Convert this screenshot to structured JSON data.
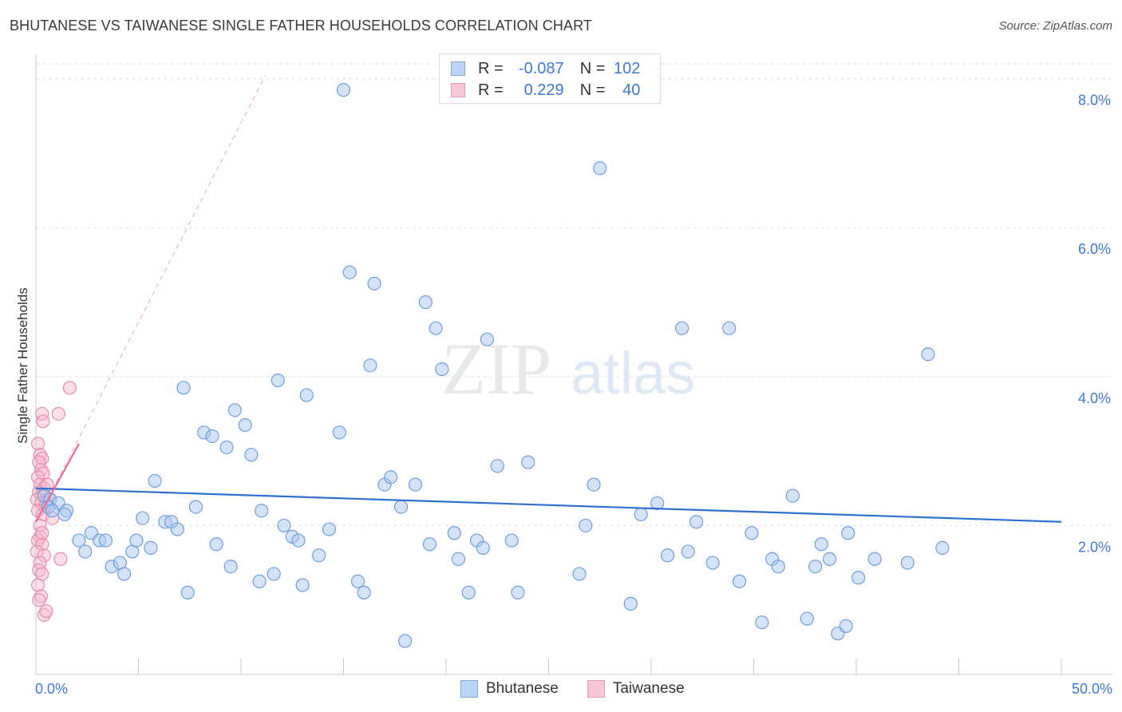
{
  "title": "BHUTANESE VS TAIWANESE SINGLE FATHER HOUSEHOLDS CORRELATION CHART",
  "source": "Source: ZipAtlas.com",
  "watermark": {
    "zip": "ZIP",
    "atlas": "atlas"
  },
  "legend": {
    "rows": [
      {
        "r_label": "R =",
        "r_value": "-0.087",
        "n_label": "N =",
        "n_value": "102"
      },
      {
        "r_label": "R =",
        "r_value": "0.229",
        "n_label": "N =",
        "n_value": "40"
      }
    ],
    "items": [
      {
        "label": "Bhutanese",
        "color": "#bcd4f6"
      },
      {
        "label": "Taiwanese",
        "color": "#f8c7d5"
      }
    ]
  },
  "colors": {
    "blue_fill": "#a9c7ef",
    "blue_stroke": "#6d9ee0",
    "blue_line": "#2f6fd0",
    "pink_fill": "#f7b9cc",
    "pink_stroke": "#e88aa8",
    "pink_line": "#e56b95",
    "grid": "#dddddd",
    "tick_label": "#3b78d8"
  },
  "chart_data": {
    "type": "scatter",
    "xlabel": "",
    "ylabel": "Single Father Households",
    "xlim": [
      0,
      50
    ],
    "ylim": [
      0,
      8.2
    ],
    "x_tick_labels": [
      "0.0%",
      "50.0%"
    ],
    "y_ticks": [
      2,
      4,
      6,
      8
    ],
    "y_tick_labels": [
      "2.0%",
      "4.0%",
      "6.0%",
      "8.0%"
    ],
    "series": [
      {
        "name": "Bhutanese",
        "r": -0.087,
        "n": 102,
        "trend": {
          "x": [
            0,
            50
          ],
          "y": [
            2.5,
            2.05
          ]
        },
        "points": [
          [
            0.4,
            2.4
          ],
          [
            0.7,
            2.35
          ],
          [
            1.1,
            2.3
          ],
          [
            0.6,
            2.25
          ],
          [
            0.8,
            2.2
          ],
          [
            1.5,
            2.2
          ],
          [
            1.4,
            2.15
          ],
          [
            2.1,
            1.8
          ],
          [
            2.7,
            1.9
          ],
          [
            3.1,
            1.8
          ],
          [
            3.4,
            1.8
          ],
          [
            2.4,
            1.65
          ],
          [
            3.7,
            1.45
          ],
          [
            4.1,
            1.5
          ],
          [
            4.3,
            1.35
          ],
          [
            4.7,
            1.65
          ],
          [
            4.9,
            1.8
          ],
          [
            5.2,
            2.1
          ],
          [
            5.6,
            1.7
          ],
          [
            5.8,
            2.6
          ],
          [
            6.3,
            2.05
          ],
          [
            6.6,
            2.05
          ],
          [
            6.9,
            1.95
          ],
          [
            7.2,
            3.85
          ],
          [
            7.4,
            1.1
          ],
          [
            7.8,
            2.25
          ],
          [
            8.2,
            3.25
          ],
          [
            8.6,
            3.2
          ],
          [
            8.8,
            1.75
          ],
          [
            9.3,
            3.05
          ],
          [
            9.5,
            1.45
          ],
          [
            9.7,
            3.55
          ],
          [
            10.2,
            3.35
          ],
          [
            10.5,
            2.95
          ],
          [
            10.9,
            1.25
          ],
          [
            11.0,
            2.2
          ],
          [
            11.6,
            1.35
          ],
          [
            11.8,
            3.95
          ],
          [
            12.1,
            2.0
          ],
          [
            12.5,
            1.85
          ],
          [
            12.8,
            1.8
          ],
          [
            13.0,
            1.2
          ],
          [
            13.2,
            3.75
          ],
          [
            13.8,
            1.6
          ],
          [
            14.3,
            1.95
          ],
          [
            14.8,
            3.25
          ],
          [
            15.3,
            5.4
          ],
          [
            15.7,
            1.25
          ],
          [
            16.0,
            1.1
          ],
          [
            16.3,
            4.15
          ],
          [
            16.5,
            5.25
          ],
          [
            17.0,
            2.55
          ],
          [
            17.3,
            2.65
          ],
          [
            17.8,
            2.25
          ],
          [
            18.0,
            0.45
          ],
          [
            18.5,
            2.55
          ],
          [
            15.0,
            7.85
          ],
          [
            19.0,
            5.0
          ],
          [
            19.2,
            1.75
          ],
          [
            19.5,
            4.65
          ],
          [
            19.8,
            4.1
          ],
          [
            20.4,
            1.9
          ],
          [
            20.6,
            1.55
          ],
          [
            21.5,
            1.8
          ],
          [
            21.8,
            1.7
          ],
          [
            21.1,
            1.1
          ],
          [
            22.0,
            4.5
          ],
          [
            22.5,
            2.8
          ],
          [
            23.2,
            1.8
          ],
          [
            23.5,
            1.1
          ],
          [
            24.0,
            2.85
          ],
          [
            26.5,
            1.35
          ],
          [
            26.8,
            2.0
          ],
          [
            27.2,
            2.55
          ],
          [
            27.5,
            6.8
          ],
          [
            29.0,
            0.95
          ],
          [
            29.5,
            2.15
          ],
          [
            30.3,
            2.3
          ],
          [
            30.8,
            1.6
          ],
          [
            31.5,
            4.65
          ],
          [
            31.8,
            1.65
          ],
          [
            32.2,
            2.05
          ],
          [
            33.0,
            1.5
          ],
          [
            33.8,
            4.65
          ],
          [
            34.3,
            1.25
          ],
          [
            34.9,
            1.9
          ],
          [
            35.4,
            0.7
          ],
          [
            35.9,
            1.55
          ],
          [
            36.2,
            1.45
          ],
          [
            36.9,
            2.4
          ],
          [
            37.6,
            0.75
          ],
          [
            38.0,
            1.45
          ],
          [
            38.3,
            1.75
          ],
          [
            38.7,
            1.55
          ],
          [
            39.1,
            0.55
          ],
          [
            39.5,
            0.65
          ],
          [
            40.1,
            1.3
          ],
          [
            39.6,
            1.9
          ],
          [
            40.9,
            1.55
          ],
          [
            42.5,
            1.5
          ],
          [
            43.5,
            4.3
          ],
          [
            44.2,
            1.7
          ]
        ]
      },
      {
        "name": "Taiwanese",
        "r": 0.229,
        "n": 40,
        "trend": {
          "x": [
            0,
            2.1
          ],
          "y": [
            2.05,
            3.1
          ]
        },
        "trend_extended": {
          "x": [
            0,
            11.2
          ],
          "y": [
            2.05,
            8.05
          ]
        },
        "points": [
          [
            0.1,
            3.1
          ],
          [
            0.2,
            2.95
          ],
          [
            0.3,
            2.9
          ],
          [
            0.15,
            2.85
          ],
          [
            0.25,
            2.75
          ],
          [
            0.35,
            2.7
          ],
          [
            0.1,
            2.65
          ],
          [
            0.2,
            2.55
          ],
          [
            0.4,
            2.5
          ],
          [
            0.15,
            2.45
          ],
          [
            0.3,
            2.4
          ],
          [
            0.05,
            2.35
          ],
          [
            0.25,
            2.3
          ],
          [
            0.45,
            2.25
          ],
          [
            0.1,
            2.2
          ],
          [
            0.35,
            2.15
          ],
          [
            0.2,
            1.85
          ],
          [
            0.1,
            1.8
          ],
          [
            0.3,
            1.75
          ],
          [
            0.05,
            1.65
          ],
          [
            0.4,
            1.6
          ],
          [
            0.2,
            1.5
          ],
          [
            0.15,
            1.4
          ],
          [
            0.3,
            1.35
          ],
          [
            0.1,
            1.2
          ],
          [
            0.25,
            1.05
          ],
          [
            0.15,
            1.0
          ],
          [
            0.4,
            0.8
          ],
          [
            0.5,
            0.85
          ],
          [
            1.2,
            1.55
          ],
          [
            0.3,
            3.5
          ],
          [
            0.35,
            3.4
          ],
          [
            1.1,
            3.5
          ],
          [
            1.65,
            3.85
          ],
          [
            0.8,
            2.1
          ],
          [
            0.55,
            2.55
          ],
          [
            0.6,
            2.35
          ],
          [
            0.5,
            2.3
          ],
          [
            0.2,
            2.0
          ],
          [
            0.3,
            1.9
          ]
        ]
      }
    ]
  }
}
